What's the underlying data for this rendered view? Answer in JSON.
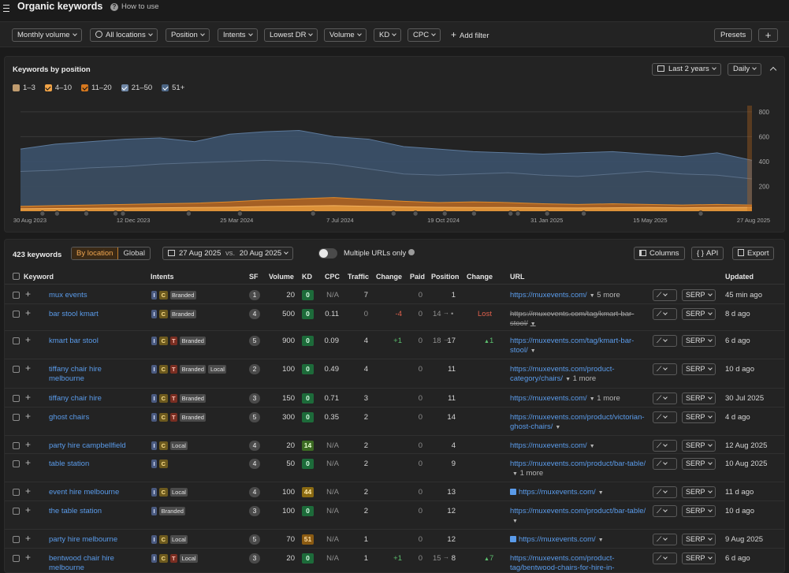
{
  "header": {
    "title": "Organic keywords",
    "how_to_use": "How to use"
  },
  "filters": {
    "items": [
      "Monthly volume",
      "All locations",
      "Position",
      "Intents",
      "Lowest DR",
      "Volume",
      "KD",
      "CPC"
    ],
    "add_filter": "Add filter",
    "presets": "Presets"
  },
  "chart_panel": {
    "title": "Keywords by position",
    "range": "Last 2 years",
    "granularity": "Daily",
    "legend": [
      {
        "label": "1–3",
        "checked": false,
        "color": "#f6c68a"
      },
      {
        "label": "4–10",
        "checked": true,
        "color": "#f0a347"
      },
      {
        "label": "11–20",
        "checked": true,
        "color": "#d7781e"
      },
      {
        "label": "21–50",
        "checked": true,
        "color": "#6f87a6"
      },
      {
        "label": "51+",
        "checked": true,
        "color": "#4c6686"
      }
    ]
  },
  "chart_data": {
    "type": "area",
    "x_ticks": [
      "30 Aug 2023",
      "12 Dec 2023",
      "25 Mar 2024",
      "7 Jul 2024",
      "19 Oct 2024",
      "31 Jan 2025",
      "15 May 2025",
      "27 Aug 2025"
    ],
    "y_ticks": [
      200,
      400,
      600,
      800
    ],
    "ylim": [
      0,
      850
    ],
    "series": [
      {
        "name": "51+",
        "values": [
          500,
          540,
          560,
          580,
          590,
          560,
          620,
          640,
          650,
          600,
          580,
          520,
          500,
          480,
          470,
          460,
          470,
          480,
          460,
          440,
          470,
          410
        ]
      },
      {
        "name": "21–50",
        "values": [
          320,
          330,
          350,
          360,
          380,
          390,
          400,
          410,
          400,
          380,
          340,
          300,
          290,
          300,
          310,
          290,
          280,
          300,
          320,
          300,
          290,
          260
        ]
      },
      {
        "name": "11–20",
        "values": [
          40,
          45,
          50,
          55,
          60,
          65,
          75,
          90,
          100,
          110,
          95,
          80,
          70,
          75,
          70,
          60,
          55,
          60,
          55,
          50,
          55,
          50
        ]
      },
      {
        "name": "4–10",
        "values": [
          20,
          22,
          24,
          25,
          28,
          30,
          32,
          38,
          42,
          45,
          40,
          35,
          32,
          30,
          30,
          28,
          26,
          28,
          30,
          28,
          30,
          32
        ]
      }
    ]
  },
  "table": {
    "keyword_count": "423 keywords",
    "by_location": "By location",
    "global": "Global",
    "date_from": "27 Aug 2025",
    "vs": "vs.",
    "date_to": "20 Aug 2025",
    "multiple_urls": "Multiple URLs only",
    "columns_btn": "Columns",
    "api_btn": "API",
    "export_btn": "Export",
    "headers": {
      "keyword": "Keyword",
      "intents": "Intents",
      "sf": "SF",
      "volume": "Volume",
      "kd": "KD",
      "cpc": "CPC",
      "traffic": "Traffic",
      "change": "Change",
      "paid": "Paid",
      "position": "Position",
      "pos_change": "Change",
      "url": "URL",
      "updated": "Updated"
    },
    "serp": "SERP",
    "rows": [
      {
        "keyword": "mux events",
        "intents": [
          "I",
          "C"
        ],
        "tags": [
          "Branded"
        ],
        "sf": "1",
        "volume": "20",
        "kd": "0",
        "kdc": "kd0",
        "cpc": "N/A",
        "traffic": "7",
        "change": "",
        "paid": "0",
        "pos_prev": "",
        "position": "1",
        "pos_change": "",
        "url": "https://muxevents.com/",
        "more": "5 more",
        "updated": "45 min ago"
      },
      {
        "keyword": "bar stool kmart",
        "intents": [
          "I",
          "C"
        ],
        "tags": [
          "Branded"
        ],
        "sf": "4",
        "volume": "500",
        "kd": "0",
        "kdc": "kd0",
        "cpc": "0.11",
        "traffic": "0",
        "change": "-4",
        "paid": "0",
        "pos_prev": "14",
        "position": "",
        "pos_change": "Lost",
        "url": "https://muxevents.com/tag/kmart-bar-stool/",
        "more": "",
        "updated": "8 d ago"
      },
      {
        "keyword": "kmart bar stool",
        "intents": [
          "I",
          "C",
          "T"
        ],
        "tags": [
          "Branded"
        ],
        "sf": "5",
        "volume": "900",
        "kd": "0",
        "kdc": "kd0",
        "cpc": "0.09",
        "traffic": "4",
        "change": "+1",
        "paid": "0",
        "pos_prev": "18",
        "position": "17",
        "pos_change": "1",
        "url": "https://muxevents.com/tag/kmart-bar-stool/",
        "more": "",
        "updated": "6 d ago"
      },
      {
        "keyword": "tiffany chair hire melbourne",
        "intents": [
          "I",
          "C",
          "T"
        ],
        "tags": [
          "Branded",
          "Local"
        ],
        "sf": "2",
        "volume": "100",
        "kd": "0",
        "kdc": "kd0",
        "cpc": "0.49",
        "traffic": "4",
        "change": "",
        "paid": "0",
        "pos_prev": "",
        "position": "11",
        "pos_change": "",
        "url": "https://muxevents.com/product-category/chairs/",
        "more": "1 more",
        "updated": "10 d ago"
      },
      {
        "keyword": "tiffany chair hire",
        "intents": [
          "I",
          "C",
          "T"
        ],
        "tags": [
          "Branded"
        ],
        "sf": "3",
        "volume": "150",
        "kd": "0",
        "kdc": "kd0",
        "cpc": "0.71",
        "traffic": "3",
        "change": "",
        "paid": "0",
        "pos_prev": "",
        "position": "11",
        "pos_change": "",
        "url": "https://muxevents.com/",
        "more": "1 more",
        "updated": "30 Jul 2025"
      },
      {
        "keyword": "ghost chairs",
        "intents": [
          "I",
          "C",
          "T"
        ],
        "tags": [
          "Branded"
        ],
        "sf": "5",
        "volume": "300",
        "kd": "0",
        "kdc": "kd0",
        "cpc": "0.35",
        "traffic": "2",
        "change": "",
        "paid": "0",
        "pos_prev": "",
        "position": "14",
        "pos_change": "",
        "url": "https://muxevents.com/product/victorian-ghost-chairs/",
        "more": "",
        "updated": "4 d ago"
      },
      {
        "keyword": "party hire campbellfield",
        "intents": [
          "I",
          "C"
        ],
        "tags": [
          "Local"
        ],
        "sf": "4",
        "volume": "20",
        "kd": "14",
        "kdc": "kd14",
        "cpc": "N/A",
        "traffic": "2",
        "change": "",
        "paid": "0",
        "pos_prev": "",
        "position": "4",
        "pos_change": "",
        "url": "https://muxevents.com/",
        "more": "",
        "updated": "12 Aug 2025"
      },
      {
        "keyword": "table station",
        "intents": [
          "I",
          "C"
        ],
        "tags": [],
        "sf": "4",
        "volume": "50",
        "kd": "0",
        "kdc": "kd0",
        "cpc": "N/A",
        "traffic": "2",
        "change": "",
        "paid": "0",
        "pos_prev": "",
        "position": "9",
        "pos_change": "",
        "url": "https://muxevents.com/product/bar-table/",
        "more": "1 more",
        "updated": "10 Aug 2025"
      },
      {
        "keyword": "event hire melbourne",
        "intents": [
          "I",
          "C"
        ],
        "tags": [
          "Local"
        ],
        "sf": "4",
        "volume": "100",
        "kd": "44",
        "kdc": "kd44",
        "cpc": "N/A",
        "traffic": "2",
        "change": "",
        "paid": "0",
        "pos_prev": "",
        "position": "13",
        "pos_change": "",
        "url": "https://muxevents.com/",
        "more": "",
        "updated": "11 d ago"
      },
      {
        "keyword": "the table station",
        "intents": [
          "I"
        ],
        "tags": [
          "Branded"
        ],
        "sf": "3",
        "volume": "100",
        "kd": "0",
        "kdc": "kd0",
        "cpc": "N/A",
        "traffic": "2",
        "change": "",
        "paid": "0",
        "pos_prev": "",
        "position": "12",
        "pos_change": "",
        "url": "https://muxevents.com/product/bar-table/",
        "more": "",
        "updated": "10 d ago"
      },
      {
        "keyword": "party hire melbourne",
        "intents": [
          "I",
          "C"
        ],
        "tags": [
          "Local"
        ],
        "sf": "5",
        "volume": "70",
        "kd": "51",
        "kdc": "kd51",
        "cpc": "N/A",
        "traffic": "1",
        "change": "",
        "paid": "0",
        "pos_prev": "",
        "position": "12",
        "pos_change": "",
        "url": "https://muxevents.com/",
        "more": "",
        "updated": "9 Aug 2025"
      },
      {
        "keyword": "bentwood chair hire melbourne",
        "intents": [
          "I",
          "C",
          "T"
        ],
        "tags": [
          "Local"
        ],
        "sf": "3",
        "volume": "20",
        "kd": "0",
        "kdc": "kd0",
        "cpc": "N/A",
        "traffic": "1",
        "change": "+1",
        "paid": "0",
        "pos_prev": "15",
        "position": "8",
        "pos_change": "7",
        "url": "https://muxevents.com/product-tag/bentwood-chairs-for-hire-in-melbourne/",
        "more": "",
        "updated": "6 d ago"
      }
    ]
  }
}
